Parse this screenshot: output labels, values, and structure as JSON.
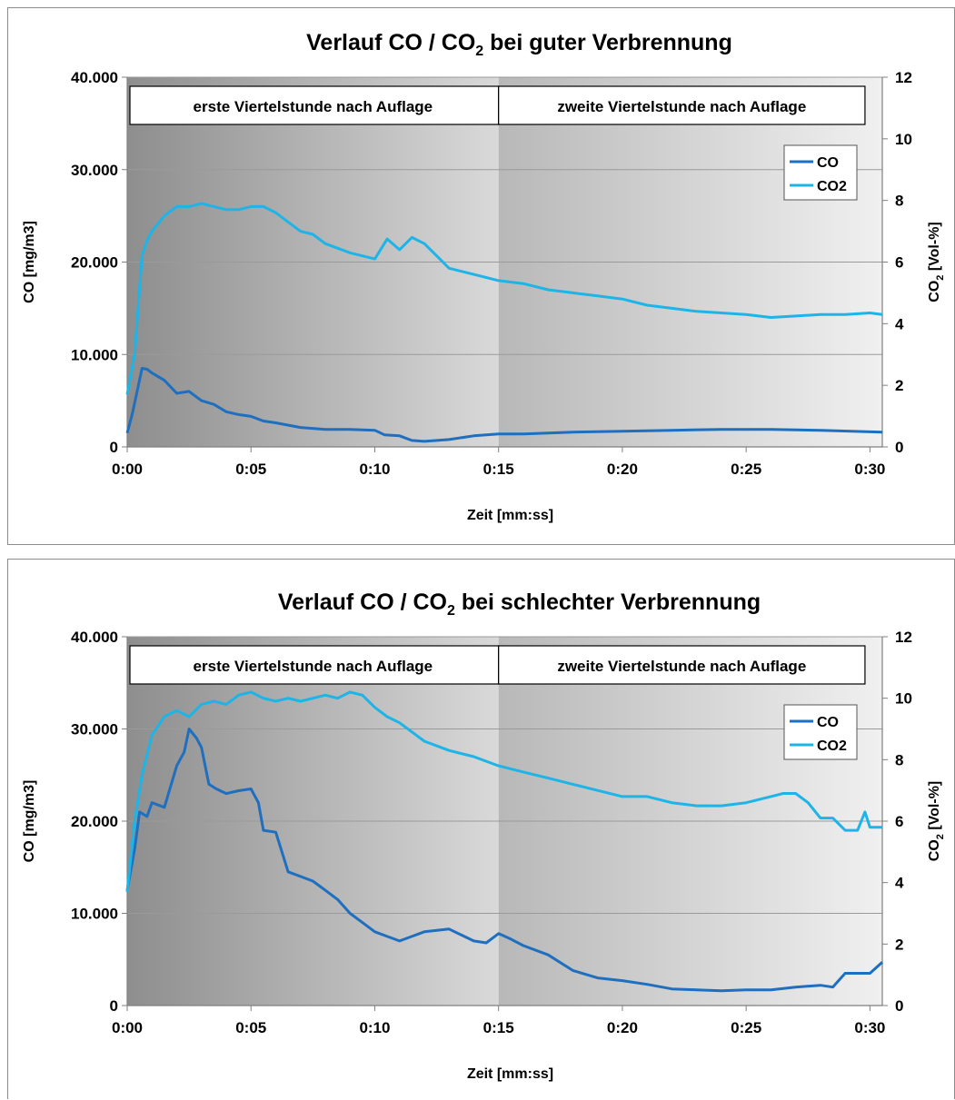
{
  "chart_data": [
    {
      "type": "line",
      "title": "Verlauf CO / CO",
      "title_subscript": "2",
      "title_suffix": " bei guter Verbrennung",
      "xlabel": "Zeit [mm:ss]",
      "ylabel": "CO [mg/m3]",
      "y2label": "CO",
      "y2label_subscript": "2",
      "y2label_suffix": "  [Vol-%]",
      "xlim": [
        0,
        30.5
      ],
      "ylim": [
        0,
        40000
      ],
      "y2lim": [
        0,
        12
      ],
      "x_ticks": [
        "0:00",
        "0:05",
        "0:10",
        "0:15",
        "0:20",
        "0:25",
        "0:30"
      ],
      "y_ticks": [
        "0",
        "10.000",
        "20.000",
        "30.000",
        "40.000"
      ],
      "y2_ticks": [
        "0",
        "2",
        "4",
        "6",
        "8",
        "10",
        "12"
      ],
      "grid": true,
      "legend_position": "top-right",
      "bands": [
        "erste Viertelstunde nach Auflage",
        "zweite Viertelstunde nach Auflage"
      ],
      "series": [
        {
          "name": "CO",
          "axis": "left",
          "color": "#1e6fbf",
          "x": [
            0,
            0.2,
            0.4,
            0.6,
            0.8,
            1.0,
            1.5,
            2.0,
            2.5,
            3.0,
            3.5,
            4.0,
            4.5,
            5.0,
            5.5,
            6.0,
            7.0,
            8.0,
            9.0,
            10.0,
            10.4,
            11.0,
            11.5,
            12.0,
            13.0,
            14.0,
            15.0,
            16.0,
            17.0,
            18.0,
            20.0,
            22.0,
            24.0,
            26.0,
            28.0,
            30.5
          ],
          "values": [
            1500,
            3500,
            6000,
            8500,
            8400,
            8000,
            7200,
            5800,
            6000,
            5000,
            4600,
            3800,
            3500,
            3300,
            2800,
            2600,
            2100,
            1900,
            1900,
            1800,
            1300,
            1200,
            700,
            600,
            800,
            1200,
            1400,
            1400,
            1500,
            1600,
            1700,
            1800,
            1900,
            1900,
            1800,
            1600
          ]
        },
        {
          "name": "CO2",
          "axis": "right",
          "color": "#1db4e8",
          "x": [
            0,
            0.3,
            0.6,
            0.8,
            1.0,
            1.5,
            2.0,
            2.5,
            3.0,
            3.5,
            4.0,
            4.5,
            5.0,
            5.5,
            6.0,
            6.5,
            7.0,
            7.5,
            8.0,
            9.0,
            10.0,
            10.5,
            11.0,
            11.5,
            12.0,
            12.5,
            13.0,
            14.0,
            15.0,
            16.0,
            17.0,
            18.0,
            19.0,
            20.0,
            21.0,
            22.0,
            23.0,
            24.0,
            25.0,
            26.0,
            27.0,
            28.0,
            29.0,
            30.0,
            30.5
          ],
          "values": [
            1.7,
            3.0,
            6.2,
            6.7,
            7.0,
            7.5,
            7.8,
            7.8,
            7.9,
            7.8,
            7.7,
            7.7,
            7.8,
            7.8,
            7.6,
            7.3,
            7.0,
            6.9,
            6.6,
            6.3,
            6.1,
            6.75,
            6.4,
            6.8,
            6.6,
            6.2,
            5.8,
            5.6,
            5.4,
            5.3,
            5.1,
            5.0,
            4.9,
            4.8,
            4.6,
            4.5,
            4.4,
            4.35,
            4.3,
            4.2,
            4.25,
            4.3,
            4.3,
            4.35,
            4.3
          ]
        }
      ]
    },
    {
      "type": "line",
      "title": "Verlauf CO / CO",
      "title_subscript": "2",
      "title_suffix": " bei schlechter Verbrennung",
      "xlabel": "Zeit [mm:ss]",
      "ylabel": "CO [mg/m3]",
      "y2label": "CO",
      "y2label_subscript": "2",
      "y2label_suffix": "  [Vol-%]",
      "xlim": [
        0,
        30.5
      ],
      "ylim": [
        0,
        40000
      ],
      "y2lim": [
        0,
        12
      ],
      "x_ticks": [
        "0:00",
        "0:05",
        "0:10",
        "0:15",
        "0:20",
        "0:25",
        "0:30"
      ],
      "y_ticks": [
        "0",
        "10.000",
        "20.000",
        "30.000",
        "40.000"
      ],
      "y2_ticks": [
        "0",
        "2",
        "4",
        "6",
        "8",
        "10",
        "12"
      ],
      "grid": true,
      "legend_position": "top-right",
      "bands": [
        "erste Viertelstunde nach Auflage",
        "zweite Viertelstunde nach Auflage"
      ],
      "series": [
        {
          "name": "CO",
          "axis": "left",
          "color": "#1e6fbf",
          "x": [
            0,
            0.3,
            0.5,
            0.8,
            1.0,
            1.5,
            2.0,
            2.3,
            2.5,
            2.8,
            3.0,
            3.3,
            3.6,
            4.0,
            4.5,
            5.0,
            5.3,
            5.5,
            6.0,
            6.5,
            7.0,
            7.5,
            8.0,
            8.5,
            9.0,
            9.5,
            10.0,
            10.5,
            11.0,
            11.5,
            12.0,
            13.0,
            14.0,
            14.5,
            15.0,
            15.5,
            16.0,
            17.0,
            18.0,
            19.0,
            20.0,
            21.0,
            22.0,
            23.0,
            24.0,
            25.0,
            26.0,
            27.0,
            28.0,
            28.5,
            29.0,
            30.0,
            30.5
          ],
          "values": [
            12500,
            17000,
            21000,
            20500,
            22000,
            21500,
            26000,
            27500,
            30000,
            29000,
            28000,
            24000,
            23500,
            23000,
            23300,
            23500,
            22000,
            19000,
            18800,
            14500,
            14000,
            13500,
            12500,
            11500,
            10000,
            9000,
            8000,
            7500,
            7000,
            7500,
            8000,
            8300,
            7000,
            6800,
            7800,
            7200,
            6500,
            5500,
            3800,
            3000,
            2700,
            2300,
            1800,
            1700,
            1600,
            1700,
            1700,
            2000,
            2200,
            2000,
            3500,
            3500,
            4700
          ]
        },
        {
          "name": "CO2",
          "axis": "right",
          "color": "#1db4e8",
          "x": [
            0,
            0.3,
            0.6,
            1.0,
            1.5,
            2.0,
            2.5,
            3.0,
            3.5,
            4.0,
            4.5,
            5.0,
            5.5,
            6.0,
            6.5,
            7.0,
            7.5,
            8.0,
            8.5,
            9.0,
            9.5,
            10.0,
            10.5,
            11.0,
            12.0,
            13.0,
            14.0,
            15.0,
            16.0,
            17.0,
            18.0,
            19.0,
            20.0,
            21.0,
            22.0,
            23.0,
            24.0,
            25.0,
            26.0,
            26.5,
            27.0,
            27.5,
            28.0,
            28.5,
            29.0,
            29.5,
            29.8,
            30.0,
            30.5
          ],
          "values": [
            3.7,
            6.0,
            7.5,
            8.8,
            9.4,
            9.6,
            9.4,
            9.8,
            9.9,
            9.8,
            10.1,
            10.2,
            10.0,
            9.9,
            10.0,
            9.9,
            10.0,
            10.1,
            10.0,
            10.2,
            10.1,
            9.7,
            9.4,
            9.2,
            8.6,
            8.3,
            8.1,
            7.8,
            7.6,
            7.4,
            7.2,
            7.0,
            6.8,
            6.8,
            6.6,
            6.5,
            6.5,
            6.6,
            6.8,
            6.9,
            6.9,
            6.6,
            6.1,
            6.1,
            5.7,
            5.7,
            6.3,
            5.8,
            5.8
          ]
        }
      ]
    }
  ]
}
